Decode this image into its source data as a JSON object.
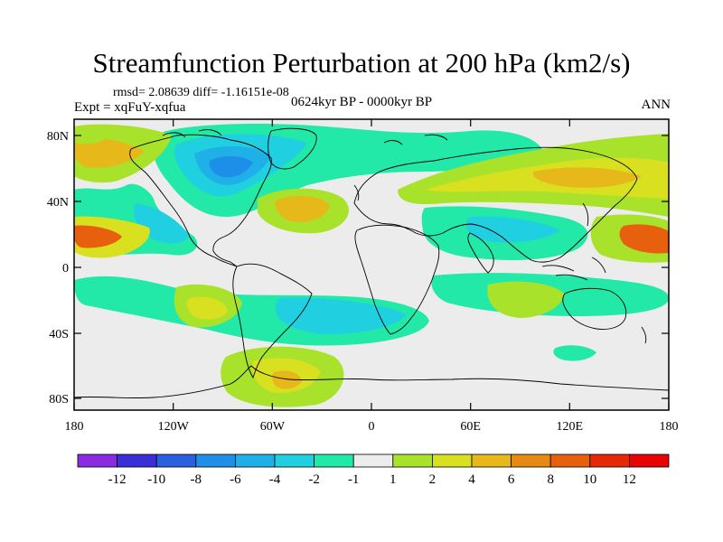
{
  "title": "Streamfunction Perturbation at 200 hPa (km2/s)",
  "stats": "rmsd= 2.08639 diff= -1.16151e-08",
  "experiment": "Expt = xqFuY-xqfua",
  "period": "0624kyr BP - 0000kyr BP",
  "season": "ANN",
  "axes": {
    "x_ticks": [
      "180",
      "120W",
      "60W",
      "0",
      "60E",
      "120E",
      "180"
    ],
    "y_ticks": [
      "80N",
      "40N",
      "0",
      "40S",
      "80S"
    ]
  },
  "colorbar": {
    "labels": [
      "-12",
      "-10",
      "-8",
      "-6",
      "-4",
      "-2",
      "-1",
      "1",
      "2",
      "4",
      "6",
      "8",
      "10",
      "12"
    ],
    "colors": [
      "#8a2be2",
      "#3a2fd6",
      "#2a5fe0",
      "#1d8fe8",
      "#1fb0e8",
      "#20d0e0",
      "#22e8a8",
      "#ececec",
      "#a8e22a",
      "#d8e020",
      "#e6b81a",
      "#e68a14",
      "#e6600e",
      "#e62808",
      "#e80404"
    ]
  },
  "colors": {
    "ocean_gray": "#ececec",
    "coast": "#000000"
  }
}
